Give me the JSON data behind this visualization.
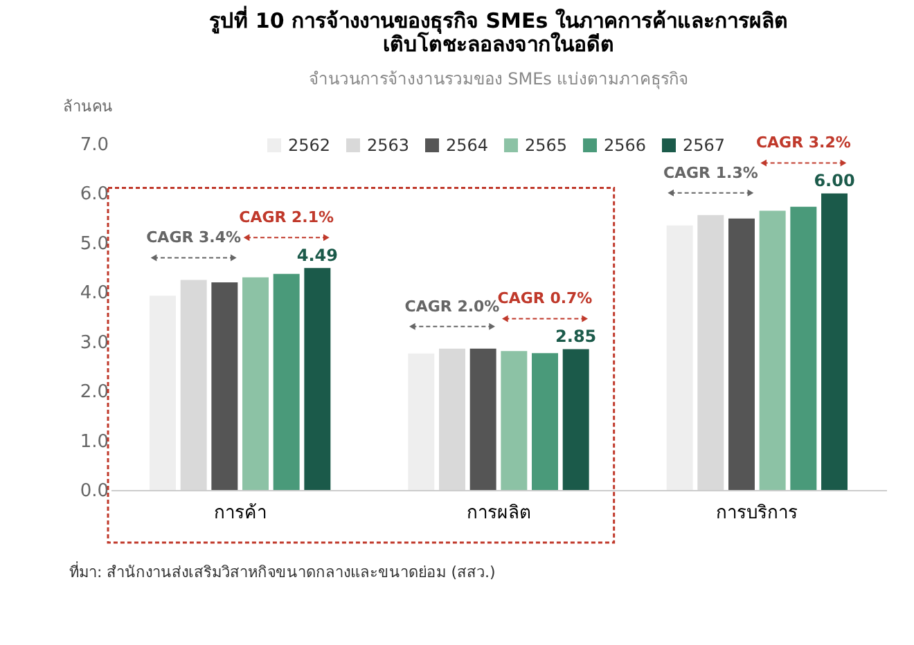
{
  "chart_data": {
    "type": "bar",
    "title": [
      "รูปที่ 10 การจ้างงานของธุรกิจ SMEs ในภาคการค้าและการผลิต",
      "เติบโตชะลอลงจากในอดีต"
    ],
    "subtitle": "จำนวนการจ้างงานรวมของ SMEs แบ่งตามภาคธุรกิจ",
    "ylabel": "ล้านคน",
    "categories": [
      "การค้า",
      "การผลิต",
      "การบริการ"
    ],
    "series": [
      {
        "name": "2562",
        "color": "#eeeeee",
        "values": [
          3.93,
          2.76,
          5.35
        ]
      },
      {
        "name": "2563",
        "color": "#d9d9d9",
        "values": [
          4.25,
          2.86,
          5.56
        ]
      },
      {
        "name": "2564",
        "color": "#555555",
        "values": [
          4.2,
          2.86,
          5.49
        ]
      },
      {
        "name": "2565",
        "color": "#8cc2a5",
        "values": [
          4.3,
          2.81,
          5.65
        ]
      },
      {
        "name": "2566",
        "color": "#4a9a7a",
        "values": [
          4.37,
          2.77,
          5.73
        ]
      },
      {
        "name": "2567",
        "color": "#1b5a4a",
        "values": [
          4.49,
          2.85,
          6.0
        ],
        "value_labels": [
          "4.49",
          "2.85",
          "6.00"
        ]
      }
    ],
    "ylim": [
      0,
      7
    ],
    "yticks": [
      {
        "value": 0,
        "label": "0.0"
      },
      {
        "value": 1,
        "label": "1.0"
      },
      {
        "value": 2,
        "label": "2.0"
      },
      {
        "value": 3,
        "label": "3.0"
      },
      {
        "value": 4,
        "label": "4.0"
      },
      {
        "value": 5,
        "label": "5.0"
      },
      {
        "value": 6,
        "label": "6.0"
      },
      {
        "value": 7,
        "label": "7.0"
      }
    ],
    "grid": false,
    "legend": "top",
    "annotations": [
      "CAGR 3.4%",
      "CAGR 2.1%",
      "CAGR 2.0%",
      "CAGR 0.7%",
      "CAGR 1.3%",
      "CAGR 3.2%",
      "ที่มา: สำนักงานส่งเสริมวิสาหกิจขนาดกลางและขนาดย่อม (สสว.)"
    ]
  }
}
